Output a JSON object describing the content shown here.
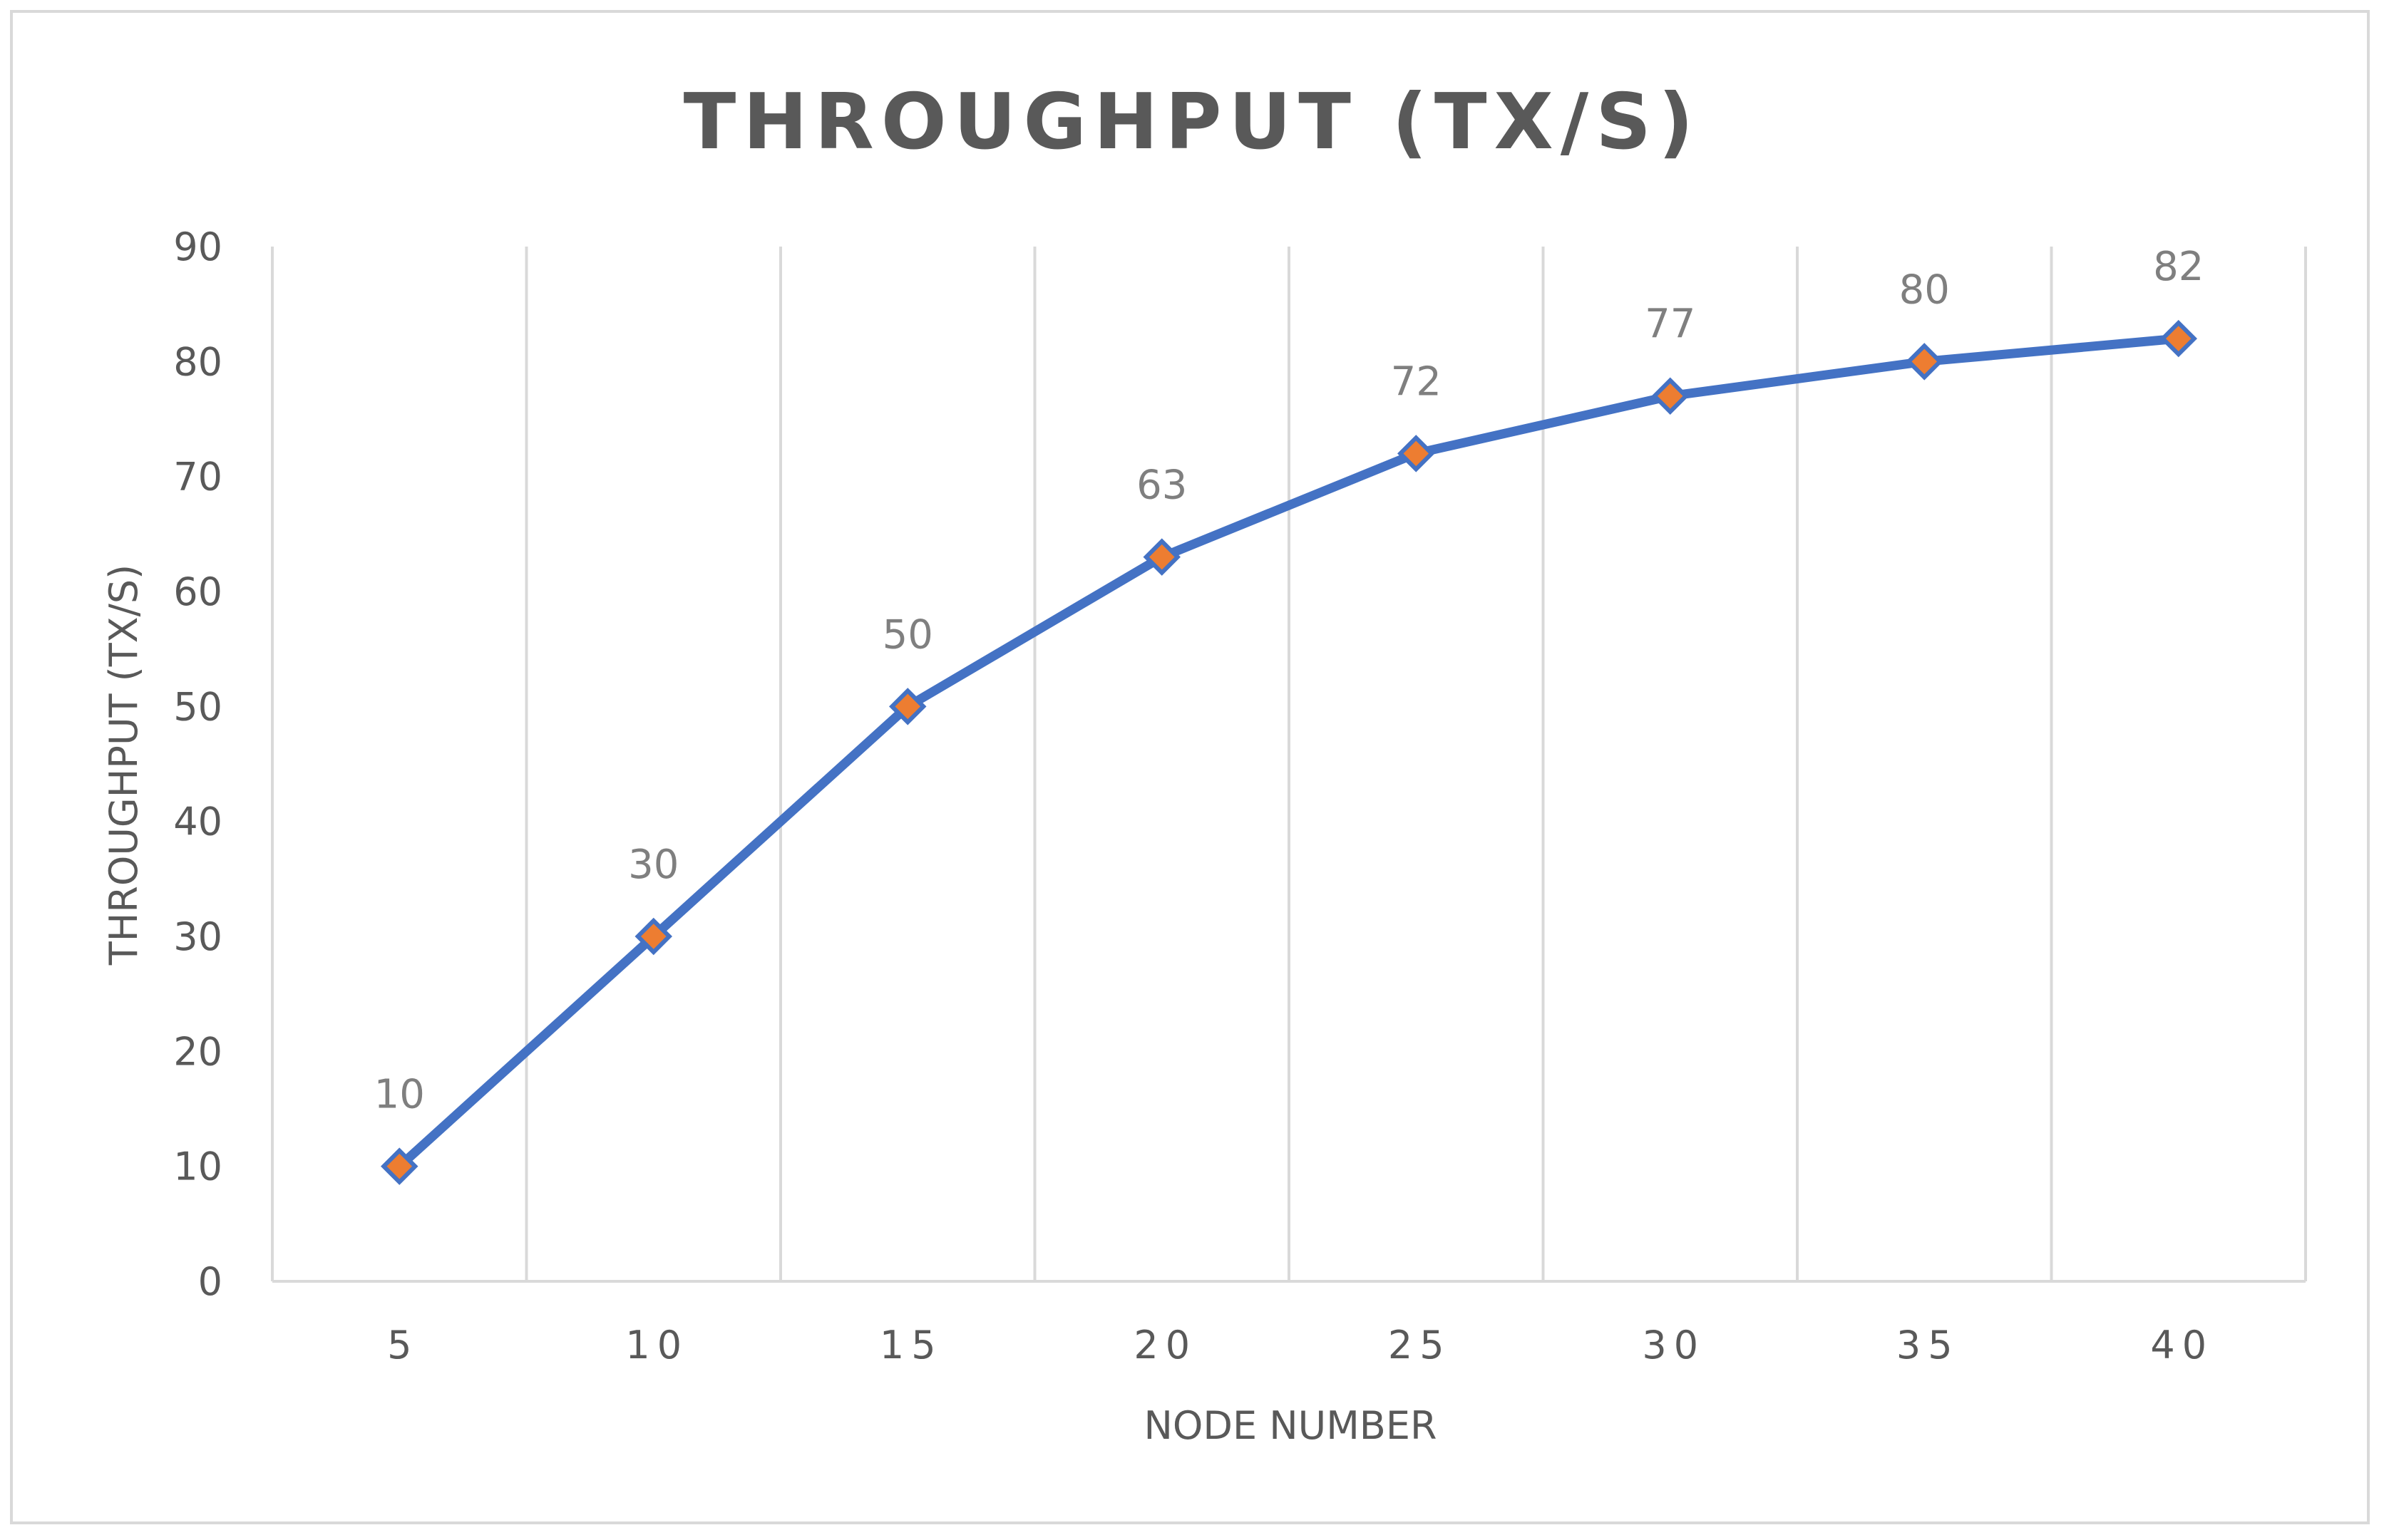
{
  "chart_data": {
    "type": "line",
    "title": "THROUGHPUT (TX/S)",
    "xlabel": "NODE NUMBER",
    "ylabel": "THROUGHPUT (TX/S)",
    "categories": [
      "5",
      "10",
      "15",
      "20",
      "25",
      "30",
      "35",
      "40"
    ],
    "series": [
      {
        "values": [
          10,
          30,
          50,
          63,
          72,
          77,
          80,
          82
        ],
        "line_color": "#4472c4",
        "marker": "diamond",
        "marker_color": "#ed7d31",
        "data_labels": true
      }
    ],
    "ylim": [
      0,
      90
    ],
    "yticks": [
      0,
      10,
      20,
      30,
      40,
      50,
      60,
      70,
      80,
      90
    ],
    "grid": "vertical",
    "legend": "none"
  }
}
